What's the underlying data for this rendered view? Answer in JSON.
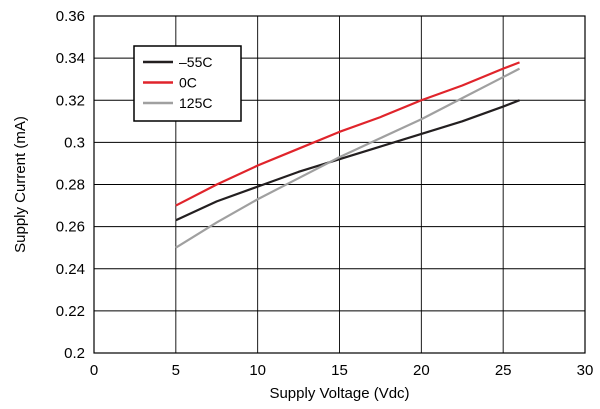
{
  "chart_data": {
    "type": "line",
    "title": "",
    "xlabel": "Supply Voltage (Vdc)",
    "ylabel": "Supply Current (mA)",
    "xlim": [
      0,
      30
    ],
    "ylim": [
      0.2,
      0.36
    ],
    "xticks": [
      0,
      5,
      10,
      15,
      20,
      25,
      30
    ],
    "xtick_labels": [
      "0",
      "5",
      "10",
      "15",
      "20",
      "25",
      "30"
    ],
    "yticks": [
      0.2,
      0.22,
      0.24,
      0.26,
      0.28,
      0.3,
      0.32,
      0.34,
      0.36
    ],
    "ytick_labels": [
      "0.2",
      "0.22",
      "0.24",
      "0.26",
      "0.28",
      "0.3",
      "0.32",
      "0.34",
      "0.36"
    ],
    "grid": true,
    "legend_position": "top-left",
    "series": [
      {
        "name": "–55C",
        "color": "#231f20",
        "x": [
          5,
          7.5,
          10,
          12.5,
          15,
          17.5,
          20,
          22.5,
          25,
          26
        ],
        "y": [
          0.263,
          0.272,
          0.279,
          0.286,
          0.292,
          0.298,
          0.304,
          0.31,
          0.317,
          0.32
        ]
      },
      {
        "name": "0C",
        "color": "#e0242b",
        "x": [
          5,
          7.5,
          10,
          12.5,
          15,
          17.5,
          20,
          22.5,
          25,
          26
        ],
        "y": [
          0.27,
          0.28,
          0.289,
          0.297,
          0.305,
          0.312,
          0.32,
          0.327,
          0.335,
          0.338
        ]
      },
      {
        "name": "125C",
        "color": "#a0a0a0",
        "x": [
          5,
          7.5,
          10,
          12.5,
          15,
          17.5,
          20,
          22.5,
          25,
          26
        ],
        "y": [
          0.25,
          0.262,
          0.273,
          0.283,
          0.293,
          0.302,
          0.311,
          0.321,
          0.331,
          0.335
        ]
      }
    ]
  }
}
